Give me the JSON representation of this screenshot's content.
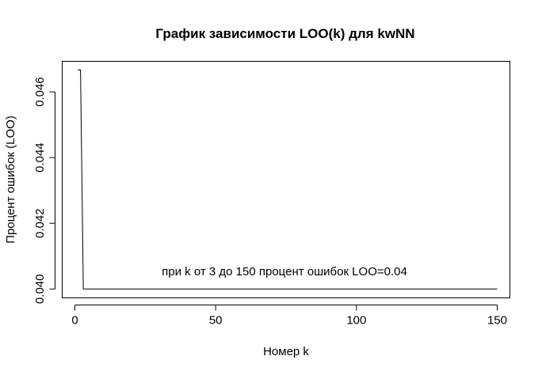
{
  "chart_data": {
    "type": "line",
    "title": "График зависимости LOO(k) для kwNN",
    "xlabel": "Номер k",
    "ylabel": "Процент ошибок (LOO)",
    "xlim": [
      -4.5,
      154.5
    ],
    "ylim": [
      0.03973,
      0.04693
    ],
    "xticks": [
      0,
      50,
      100,
      150
    ],
    "xtick_labels": [
      "0",
      "50",
      "100",
      "150"
    ],
    "yticks": [
      0.04,
      0.042,
      0.044,
      0.046
    ],
    "ytick_labels": [
      "0.040",
      "0.042",
      "0.044",
      "0.046"
    ],
    "grid": false,
    "legend": "none",
    "series": [
      {
        "x": [
          1,
          2,
          3,
          150
        ],
        "y": [
          0.046667,
          0.046667,
          0.04,
          0.04
        ]
      }
    ],
    "annotation": "при k от 3 до 150 процент ошибок LOO=0.04"
  }
}
